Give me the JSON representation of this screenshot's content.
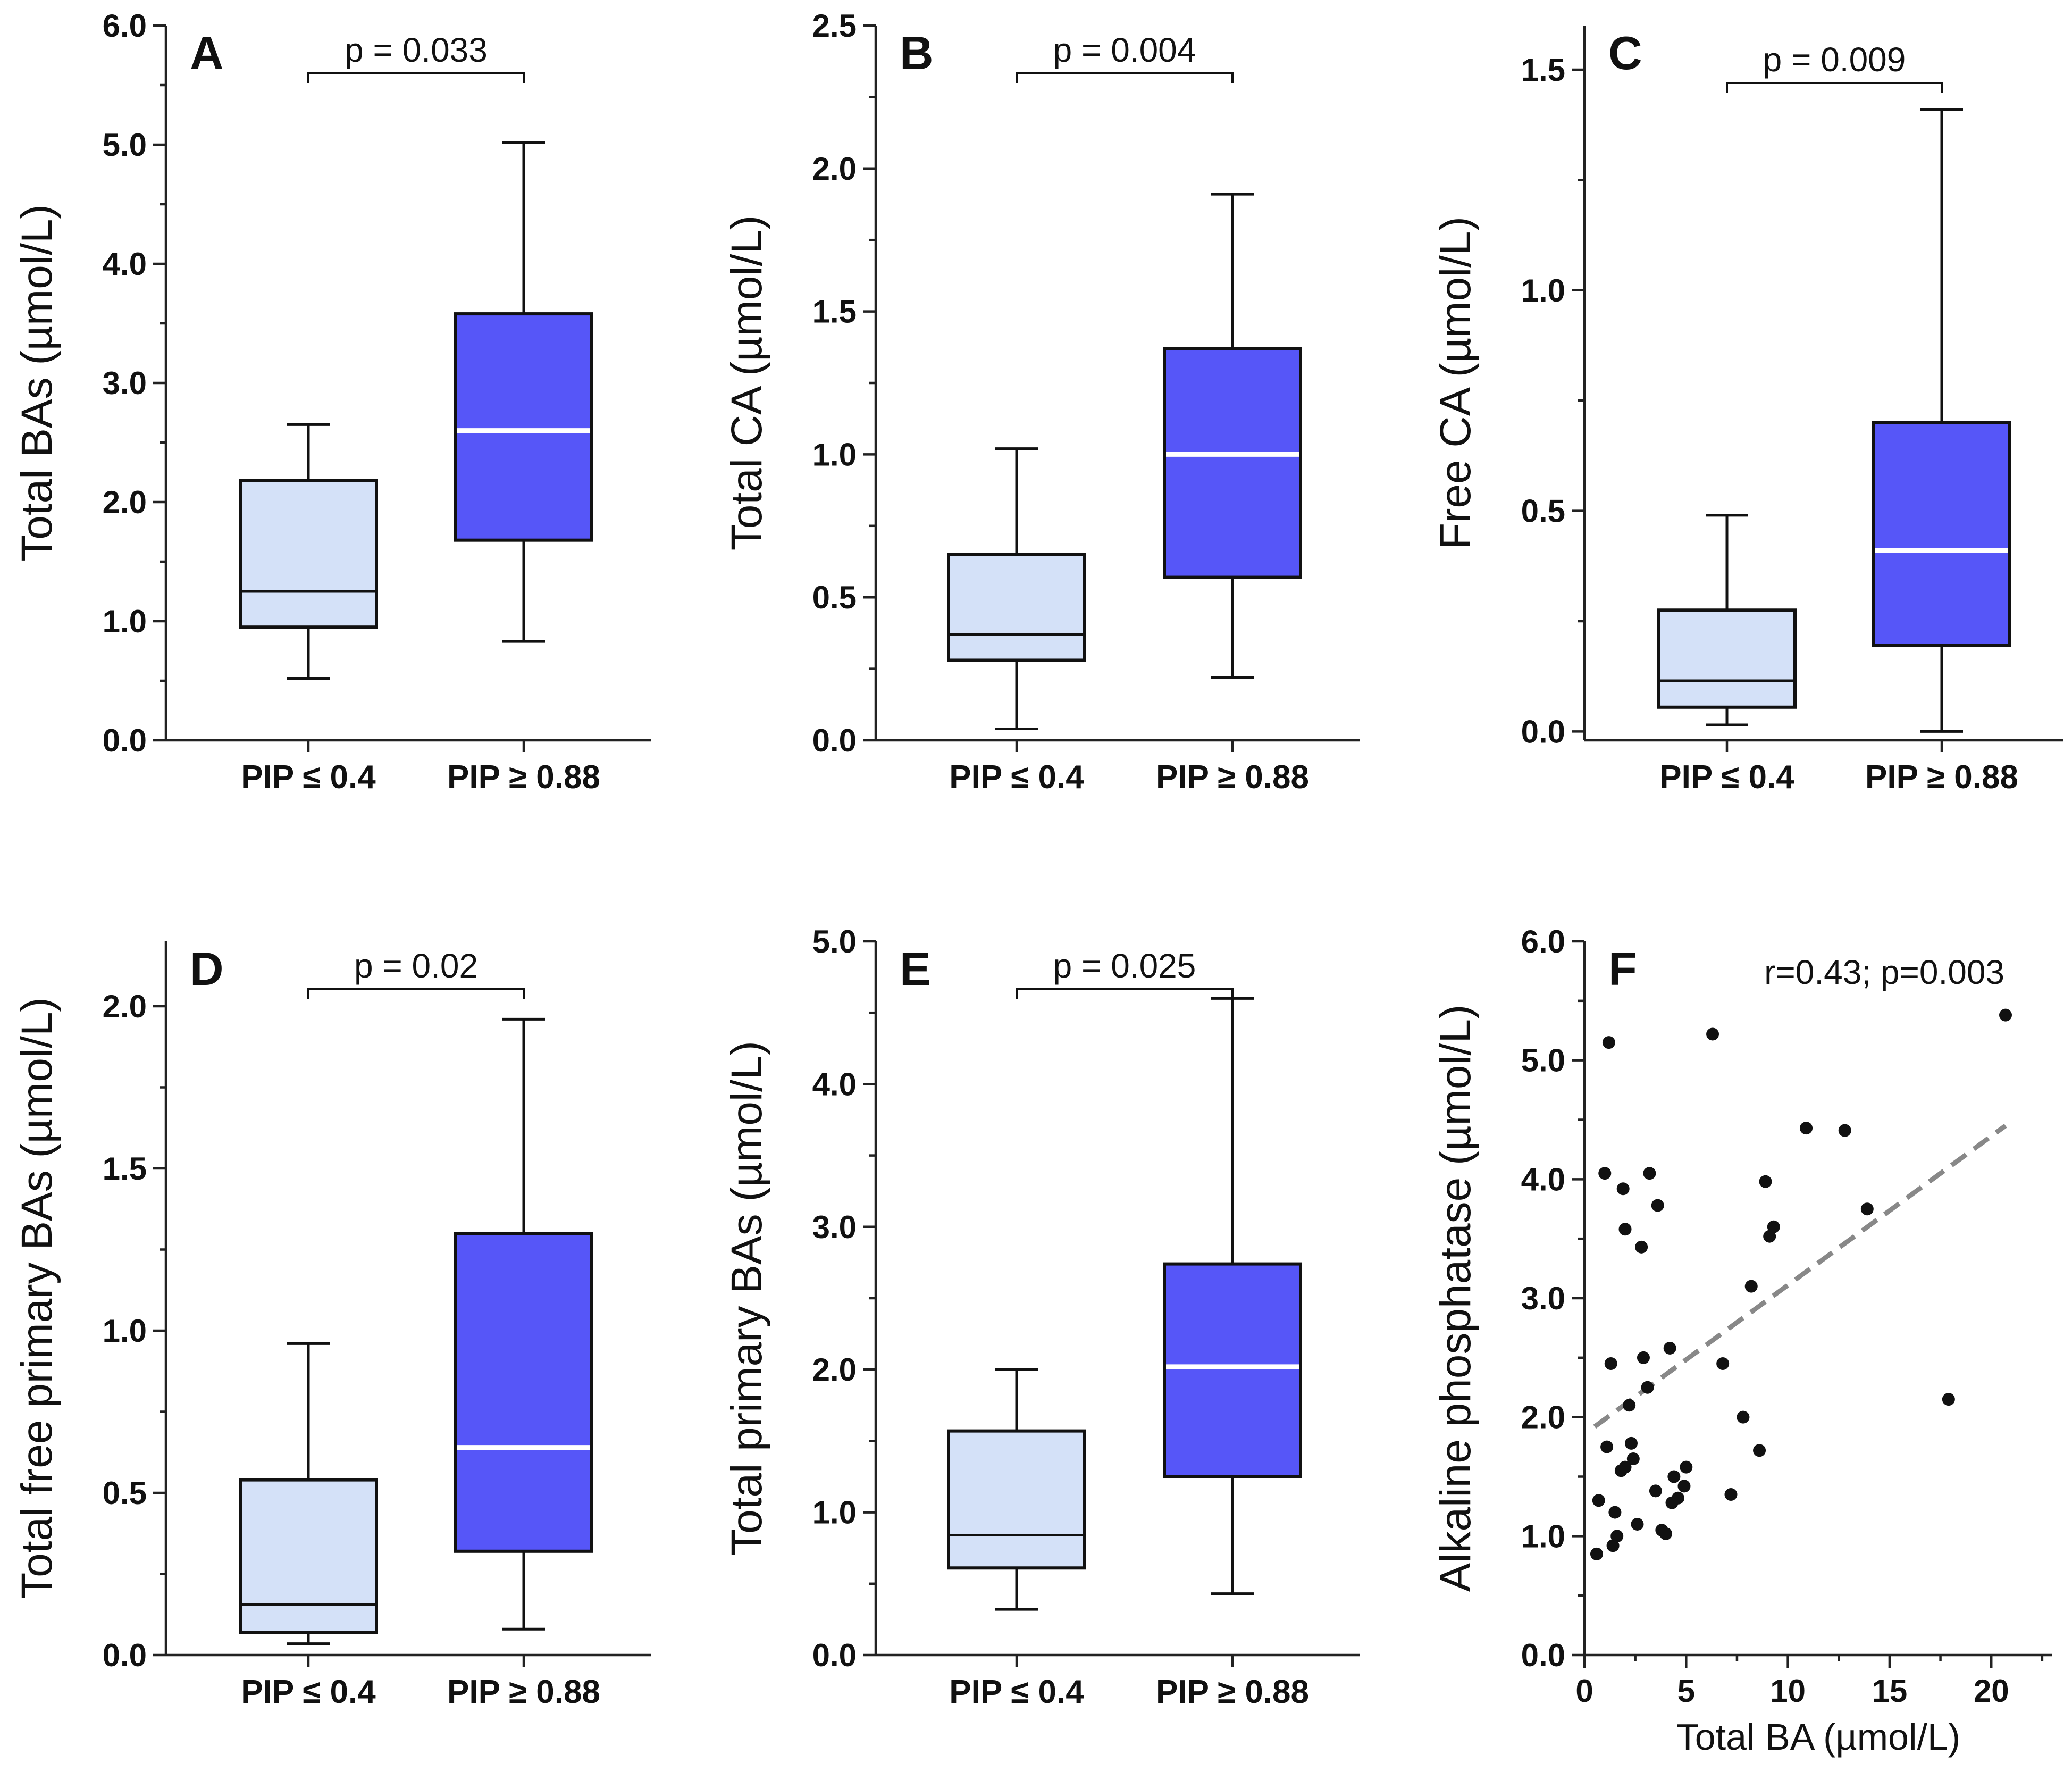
{
  "colors": {
    "low_box": "#d4e1f8",
    "high_box": "#5656f8",
    "low_median": "#111111",
    "high_median": "#ffffff",
    "point": "#111111",
    "trend": "#888888"
  },
  "chart_data": [
    {
      "panel": "A",
      "type": "box",
      "ylabel": "Total BAs (µmol/L)",
      "ylim": [
        0,
        6.0
      ],
      "yticks": [
        0.0,
        1.0,
        2.0,
        3.0,
        4.0,
        5.0,
        6.0
      ],
      "ytick_labels": [
        "0.0",
        "1.0",
        "2.0",
        "3.0",
        "4.0",
        "5.0",
        "6.0"
      ],
      "categories": [
        "PIP ≤ 0.4",
        "PIP ≥ 0.88"
      ],
      "boxes": [
        {
          "min": 0.52,
          "q1": 0.95,
          "median": 1.25,
          "q3": 2.18,
          "max": 2.65
        },
        {
          "min": 0.83,
          "q1": 1.68,
          "median": 2.6,
          "q3": 3.58,
          "max": 5.02
        }
      ],
      "p_label": "p = 0.033"
    },
    {
      "panel": "B",
      "type": "box",
      "ylabel": "Total CA (µmol/L)",
      "ylim": [
        0,
        2.5
      ],
      "yticks": [
        0.0,
        0.5,
        1.0,
        1.5,
        2.0,
        2.5
      ],
      "ytick_labels": [
        "0.0",
        "0.5",
        "1.0",
        "1.5",
        "2.0",
        "2.5"
      ],
      "categories": [
        "PIP ≤ 0.4",
        "PIP ≥ 0.88"
      ],
      "boxes": [
        {
          "min": 0.04,
          "q1": 0.28,
          "median": 0.37,
          "q3": 0.65,
          "max": 1.02
        },
        {
          "min": 0.22,
          "q1": 0.57,
          "median": 1.0,
          "q3": 1.37,
          "max": 1.91
        }
      ],
      "p_label": "p = 0.004"
    },
    {
      "panel": "C",
      "type": "box",
      "ylabel": "Free CA (µmol/L)",
      "ylim": [
        -0.02,
        1.6
      ],
      "yticks": [
        0.0,
        0.5,
        1.0,
        1.5
      ],
      "ytick_labels": [
        "0.0",
        "0.5",
        "1.0",
        "1.5"
      ],
      "categories": [
        "PIP ≤ 0.4",
        "PIP ≥ 0.88"
      ],
      "boxes": [
        {
          "min": 0.015,
          "q1": 0.055,
          "median": 0.115,
          "q3": 0.275,
          "max": 0.49
        },
        {
          "min": 0.0,
          "q1": 0.195,
          "median": 0.41,
          "q3": 0.7,
          "max": 1.41
        }
      ],
      "p_label": "p = 0.009"
    },
    {
      "panel": "D",
      "type": "box",
      "ylabel": "Total free primary BAs (µmol/L)",
      "ylim": [
        0,
        2.2
      ],
      "yticks": [
        0.0,
        0.5,
        1.0,
        1.5,
        2.0
      ],
      "ytick_labels": [
        "0.0",
        "0.5",
        "1.0",
        "1.5",
        "2.0"
      ],
      "categories": [
        "PIP ≤ 0.4",
        "PIP ≥ 0.88"
      ],
      "boxes": [
        {
          "min": 0.035,
          "q1": 0.07,
          "median": 0.155,
          "q3": 0.54,
          "max": 0.96
        },
        {
          "min": 0.08,
          "q1": 0.32,
          "median": 0.64,
          "q3": 1.3,
          "max": 1.96
        }
      ],
      "p_label": "p = 0.02"
    },
    {
      "panel": "E",
      "type": "box",
      "ylabel": "Total primary BAs (µmol/L)",
      "ylim": [
        0,
        5.0
      ],
      "yticks": [
        0.0,
        1.0,
        2.0,
        3.0,
        4.0,
        5.0
      ],
      "ytick_labels": [
        "0.0",
        "1.0",
        "2.0",
        "3.0",
        "4.0",
        "5.0"
      ],
      "categories": [
        "PIP ≤ 0.4",
        "PIP ≥ 0.88"
      ],
      "boxes": [
        {
          "min": 0.32,
          "q1": 0.61,
          "median": 0.84,
          "q3": 1.57,
          "max": 2.0
        },
        {
          "min": 0.43,
          "q1": 1.25,
          "median": 2.02,
          "q3": 2.74,
          "max": 4.6
        }
      ],
      "p_label": "p = 0.025"
    },
    {
      "panel": "F",
      "type": "scatter",
      "ylabel": "Alkaline phosphatase (µmol/L)",
      "xlabel": "Total BA (µmol/L)",
      "xlim": [
        0,
        23
      ],
      "ylim": [
        0,
        6.0
      ],
      "xticks": [
        0,
        5,
        10,
        15,
        20
      ],
      "xtick_labels": [
        "0",
        "5",
        "10",
        "15",
        "20"
      ],
      "yticks": [
        0.0,
        1.0,
        2.0,
        3.0,
        4.0,
        5.0,
        6.0
      ],
      "ytick_labels": [
        "0.0",
        "1.0",
        "2.0",
        "3.0",
        "4.0",
        "5.0",
        "6.0"
      ],
      "annotation": "r=0.43; p=0.003",
      "points": [
        [
          0.6,
          0.85
        ],
        [
          0.7,
          1.3
        ],
        [
          1.0,
          4.05
        ],
        [
          1.1,
          1.75
        ],
        [
          1.2,
          5.15
        ],
        [
          1.3,
          2.45
        ],
        [
          1.4,
          0.92
        ],
        [
          1.5,
          1.2
        ],
        [
          1.6,
          1.0
        ],
        [
          1.8,
          1.55
        ],
        [
          1.9,
          3.92
        ],
        [
          2.0,
          3.58
        ],
        [
          2.0,
          1.58
        ],
        [
          2.2,
          2.1
        ],
        [
          2.3,
          1.78
        ],
        [
          2.4,
          1.65
        ],
        [
          2.6,
          1.1
        ],
        [
          2.8,
          3.43
        ],
        [
          2.9,
          2.5
        ],
        [
          3.1,
          2.25
        ],
        [
          3.2,
          4.05
        ],
        [
          3.5,
          1.38
        ],
        [
          3.6,
          3.78
        ],
        [
          3.8,
          1.05
        ],
        [
          4.0,
          1.02
        ],
        [
          4.2,
          2.58
        ],
        [
          4.3,
          1.28
        ],
        [
          4.4,
          1.5
        ],
        [
          4.6,
          1.32
        ],
        [
          4.9,
          1.42
        ],
        [
          5.0,
          1.58
        ],
        [
          6.3,
          5.22
        ],
        [
          6.8,
          2.45
        ],
        [
          7.2,
          1.35
        ],
        [
          7.8,
          2.0
        ],
        [
          8.2,
          3.1
        ],
        [
          8.6,
          1.72
        ],
        [
          8.9,
          3.98
        ],
        [
          9.1,
          3.52
        ],
        [
          9.3,
          3.6
        ],
        [
          10.9,
          4.43
        ],
        [
          12.8,
          4.41
        ],
        [
          13.9,
          3.75
        ],
        [
          17.9,
          2.15
        ],
        [
          20.7,
          5.38
        ]
      ],
      "trend": {
        "x": [
          0.5,
          20.7
        ],
        "y": [
          1.92,
          4.45
        ]
      }
    }
  ]
}
